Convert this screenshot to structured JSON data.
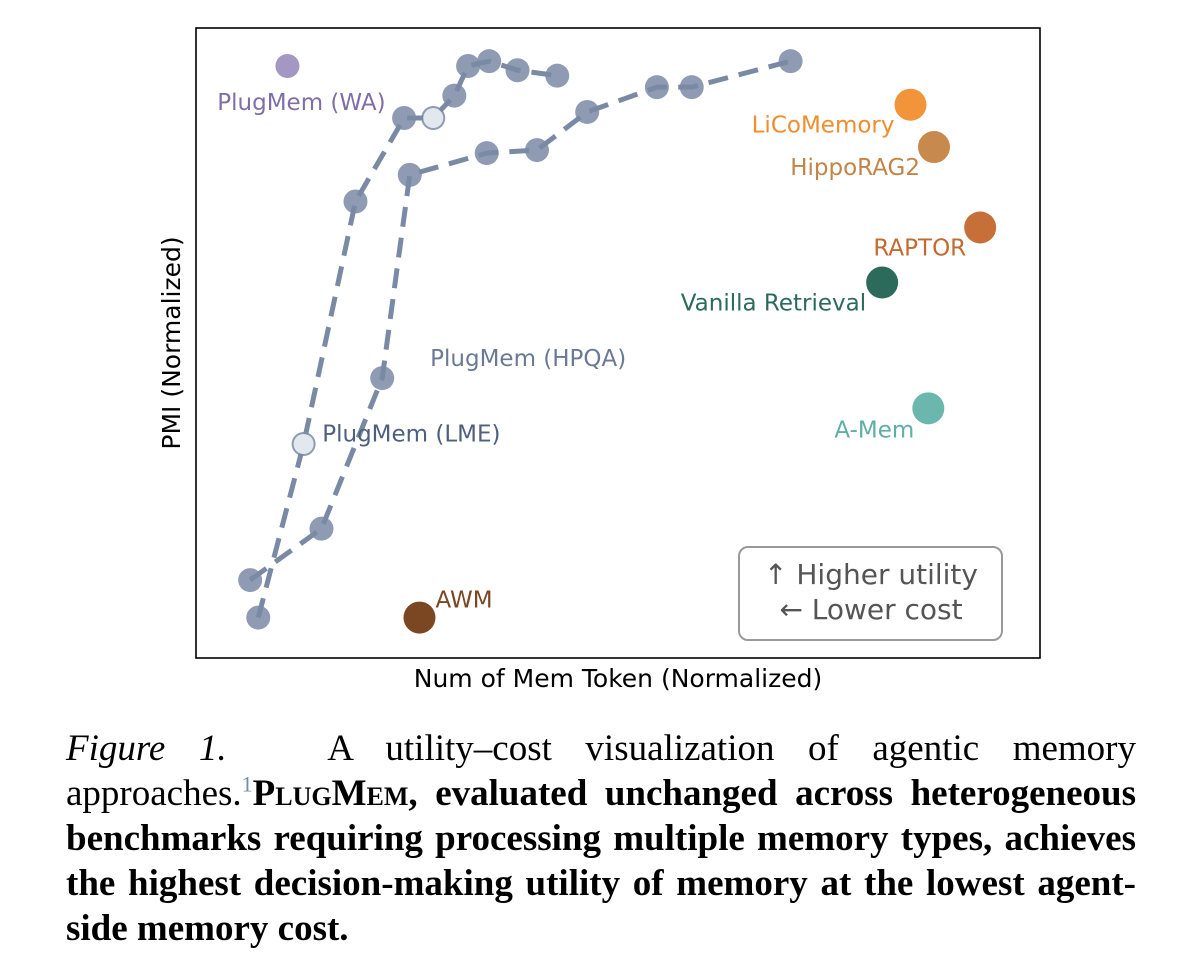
{
  "chart_data": {
    "type": "scatter",
    "title": "",
    "xlabel": "Num of Mem Token (Normalized)",
    "ylabel": "PMI (Normalized)",
    "xlim": [
      0,
      1
    ],
    "ylim": [
      0,
      1
    ],
    "grid": false,
    "legend": {
      "placement": "bottom-right",
      "lines": [
        "↑ Higher utility",
        "← Lower cost"
      ]
    },
    "series": [
      {
        "name": "PlugMem (HPQA)",
        "color": "#7a8aa5",
        "dashed": true,
        "x": [
          0.046,
          0.134,
          0.209,
          0.243,
          0.338,
          0.4,
          0.462,
          0.548,
          0.591,
          0.713
        ],
        "y": [
          0.108,
          0.193,
          0.442,
          0.778,
          0.814,
          0.819,
          0.882,
          0.923,
          0.923,
          0.966
        ]
      },
      {
        "name": "PlugMem (LME)",
        "color": "#7a8aa5",
        "dashed": true,
        "x": [
          0.056,
          0.112,
          0.176,
          0.236,
          0.272,
          0.298,
          0.315,
          0.341,
          0.376,
          0.425
        ],
        "y": [
          0.046,
          0.333,
          0.734,
          0.872,
          0.872,
          0.909,
          0.958,
          0.966,
          0.951,
          0.942
        ]
      },
      {
        "name": "PlugMem (WA)",
        "color": "#a597c4",
        "x": [
          0.092
        ],
        "y": [
          0.958
        ]
      },
      {
        "name": "AWM",
        "color": "#7b4622",
        "x": [
          0.255
        ],
        "y": [
          0.046
        ]
      },
      {
        "name": "LiCoMemory",
        "color": "#f2953a",
        "x": [
          0.861
        ],
        "y": [
          0.894
        ]
      },
      {
        "name": "HippoRAG2",
        "color": "#c8894d",
        "x": [
          0.89
        ],
        "y": [
          0.824
        ]
      },
      {
        "name": "RAPTOR",
        "color": "#c76f38",
        "x": [
          0.947
        ],
        "y": [
          0.691
        ]
      },
      {
        "name": "Vanilla Retrieval",
        "color": "#2c6b5c",
        "x": [
          0.826
        ],
        "y": [
          0.6
        ]
      },
      {
        "name": "A-Mem",
        "color": "#6cb7ad",
        "x": [
          0.883
        ],
        "y": [
          0.392
        ]
      }
    ]
  },
  "caption": {
    "figure_label": "Figure 1.",
    "text_plain": "A utility–cost visualization of agentic memory approaches.",
    "footnote_marker": "1",
    "method_name": "PlugMem",
    "text_bold": ", evaluated unchanged across heterogeneous benchmarks requiring processing multiple memory types, achieves the highest decision-making utility of memory at the lowest agent-side memory cost."
  }
}
